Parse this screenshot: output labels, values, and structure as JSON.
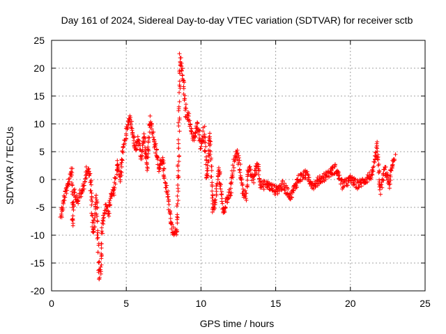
{
  "chart_data": {
    "type": "scatter",
    "title": "Day 161 of 2024, Sidereal Day-to-day VTEC variation (SDTVAR) for receiver sctb",
    "xlabel": "GPS time / hours",
    "ylabel": "SDTVAR / TECUs",
    "xlim": [
      0,
      25
    ],
    "ylim": [
      -20,
      25
    ],
    "xticks": [
      0,
      5,
      10,
      15,
      20,
      25
    ],
    "yticks": [
      -20,
      -15,
      -10,
      -5,
      0,
      5,
      10,
      15,
      20,
      25
    ],
    "grid": true,
    "marker": "+",
    "color": "#ff0000",
    "series": [
      {
        "name": "SDTVAR",
        "anchors": [
          [
            0.6,
            -7
          ],
          [
            0.8,
            -4
          ],
          [
            1.0,
            -2
          ],
          [
            1.2,
            0
          ],
          [
            1.35,
            2
          ],
          [
            1.4,
            -8
          ],
          [
            1.5,
            -2
          ],
          [
            1.7,
            -4
          ],
          [
            2.0,
            -2
          ],
          [
            2.2,
            -1
          ],
          [
            2.4,
            2
          ],
          [
            2.6,
            0
          ],
          [
            2.8,
            -10
          ],
          [
            2.9,
            -6
          ],
          [
            3.0,
            -3
          ],
          [
            3.2,
            -17.5
          ],
          [
            3.3,
            -16
          ],
          [
            3.4,
            -8
          ],
          [
            3.6,
            -5
          ],
          [
            3.8,
            -6
          ],
          [
            4.0,
            -3
          ],
          [
            4.2,
            -2
          ],
          [
            4.4,
            3
          ],
          [
            4.6,
            0
          ],
          [
            4.8,
            6
          ],
          [
            5.0,
            8
          ],
          [
            5.2,
            11
          ],
          [
            5.4,
            9
          ],
          [
            5.6,
            5
          ],
          [
            5.8,
            7
          ],
          [
            6.0,
            4
          ],
          [
            6.2,
            8
          ],
          [
            6.4,
            2
          ],
          [
            6.6,
            11
          ],
          [
            6.8,
            8
          ],
          [
            7.0,
            5
          ],
          [
            7.2,
            2
          ],
          [
            7.4,
            4
          ],
          [
            7.6,
            -1
          ],
          [
            7.8,
            -3
          ],
          [
            8.0,
            -8
          ],
          [
            8.2,
            -10
          ],
          [
            8.4,
            -9
          ],
          [
            8.5,
            5
          ],
          [
            8.6,
            22
          ],
          [
            8.8,
            18
          ],
          [
            9.0,
            12
          ],
          [
            9.2,
            11
          ],
          [
            9.5,
            7
          ],
          [
            9.8,
            10
          ],
          [
            10.0,
            6
          ],
          [
            10.2,
            9
          ],
          [
            10.4,
            0
          ],
          [
            10.6,
            8
          ],
          [
            10.8,
            -6
          ],
          [
            11.0,
            -3
          ],
          [
            11.2,
            2
          ],
          [
            11.5,
            -6
          ],
          [
            11.8,
            -3
          ],
          [
            12.0,
            -2
          ],
          [
            12.2,
            3
          ],
          [
            12.4,
            5
          ],
          [
            12.6,
            2
          ],
          [
            12.8,
            -2
          ],
          [
            13.0,
            -3
          ],
          [
            13.2,
            2
          ],
          [
            13.5,
            0
          ],
          [
            13.8,
            3
          ],
          [
            14.0,
            -1
          ],
          [
            14.5,
            -1
          ],
          [
            15.0,
            -2
          ],
          [
            15.5,
            -1
          ],
          [
            16.0,
            -3
          ],
          [
            16.5,
            0
          ],
          [
            17.0,
            1
          ],
          [
            17.5,
            -1
          ],
          [
            18.0,
            0
          ],
          [
            18.5,
            1
          ],
          [
            19.0,
            2
          ],
          [
            19.5,
            -1
          ],
          [
            20.0,
            0
          ],
          [
            20.5,
            -1
          ],
          [
            21.0,
            0
          ],
          [
            21.5,
            1
          ],
          [
            21.8,
            6
          ],
          [
            22.0,
            -2
          ],
          [
            22.3,
            2
          ],
          [
            22.6,
            -1
          ],
          [
            22.8,
            3
          ],
          [
            23.0,
            4
          ]
        ]
      }
    ]
  }
}
